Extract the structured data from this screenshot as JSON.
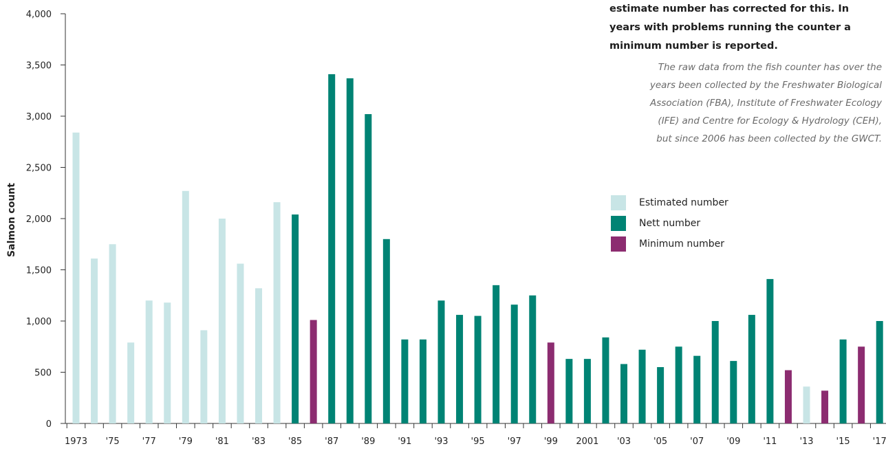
{
  "note": {
    "bold_text": "estimate number has corrected for this. In\nyears with problems running the counter a\nminimum number is reported.",
    "italic_text": "The raw data from the fish counter has over the\nyears been collected by the Freshwater Biological\nAssociation (FBA), Institute of Freshwater Ecology\n(IFE) and Centre for Ecology & Hydrology (CEH),\nbut since 2006 has been collected by the GWCT."
  },
  "colors": {
    "Estimated number": "#c8e5e6",
    "Nett number": "#008374",
    "Minimum number": "#8c2c70"
  },
  "legend": [
    {
      "label": "Estimated number",
      "color": "#c8e5e6"
    },
    {
      "label": "Nett number",
      "color": "#008374"
    },
    {
      "label": "Minimum number",
      "color": "#8c2c70"
    }
  ],
  "chart_data": {
    "type": "bar",
    "ylabel": "Salmon count",
    "xlabel": "",
    "ylim": [
      0,
      4000
    ],
    "yticks": [
      0,
      500,
      1000,
      1500,
      2000,
      2500,
      3000,
      3500,
      4000
    ],
    "ytick_labels": [
      "0",
      "500",
      "1,000",
      "1,500",
      "2,000",
      "2,500",
      "3,000",
      "3,500",
      "4,000"
    ],
    "categories": [
      "1973",
      "1974",
      "1975",
      "1976",
      "1977",
      "1978",
      "1979",
      "1980",
      "1981",
      "1982",
      "1983",
      "1984",
      "1985",
      "1986",
      "1987",
      "1988",
      "1989",
      "1990",
      "1991",
      "1992",
      "1993",
      "1994",
      "1995",
      "1996",
      "1997",
      "1998",
      "1999",
      "2000",
      "2001",
      "2002",
      "2003",
      "2004",
      "2005",
      "2006",
      "2007",
      "2008",
      "2009",
      "2010",
      "2011",
      "2012",
      "2013",
      "2014",
      "2015",
      "2016",
      "2017"
    ],
    "xtick_labels": [
      "1973",
      "",
      "'75",
      "",
      "'77",
      "",
      "'79",
      "",
      "'81",
      "",
      "'83",
      "",
      "'85",
      "",
      "'87",
      "",
      "'89",
      "",
      "'91",
      "",
      "'93",
      "",
      "'95",
      "",
      "'97",
      "",
      "'99",
      "",
      "2001",
      "",
      "'03",
      "",
      "'05",
      "",
      "'07",
      "",
      "'09",
      "",
      "'11",
      "",
      "'13",
      "",
      "'15",
      "",
      "'17"
    ],
    "values": [
      2840,
      1610,
      1750,
      790,
      1200,
      1180,
      2270,
      910,
      2000,
      1560,
      1320,
      2160,
      2040,
      1010,
      3410,
      3370,
      3020,
      1800,
      820,
      820,
      1200,
      1060,
      1050,
      1350,
      1160,
      1250,
      790,
      630,
      630,
      840,
      580,
      720,
      550,
      750,
      660,
      1000,
      610,
      1060,
      1410,
      520,
      360,
      320,
      820,
      750,
      1000
    ],
    "kinds": [
      "Estimated number",
      "Estimated number",
      "Estimated number",
      "Estimated number",
      "Estimated number",
      "Estimated number",
      "Estimated number",
      "Estimated number",
      "Estimated number",
      "Estimated number",
      "Estimated number",
      "Estimated number",
      "Nett number",
      "Minimum number",
      "Nett number",
      "Nett number",
      "Nett number",
      "Nett number",
      "Nett number",
      "Nett number",
      "Nett number",
      "Nett number",
      "Nett number",
      "Nett number",
      "Nett number",
      "Nett number",
      "Minimum number",
      "Nett number",
      "Nett number",
      "Nett number",
      "Nett number",
      "Nett number",
      "Nett number",
      "Nett number",
      "Nett number",
      "Nett number",
      "Nett number",
      "Nett number",
      "Nett number",
      "Minimum number",
      "Estimated number",
      "Minimum number",
      "Nett number",
      "Minimum number",
      "Nett number"
    ],
    "legend": [
      "Estimated number",
      "Nett number",
      "Minimum number"
    ],
    "grid": false
  }
}
